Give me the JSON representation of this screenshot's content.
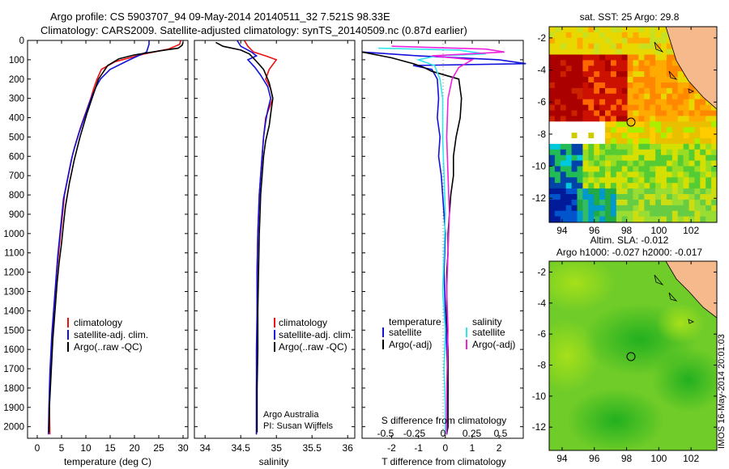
{
  "header": {
    "line1": "Argo profile: CS 5903707_94 09-May-2014 20140511_32 7.521S 98.33E",
    "line2": "Climatology: CARS2009. Satellite-adjusted climatology: synTS_20140509.nc (0.87d earlier)"
  },
  "colors": {
    "climatology": "#ee1111",
    "satellite": "#1111dd",
    "argo": "#000000",
    "sal_satellite": "#33e6ee",
    "sal_argo": "#ee22dd"
  },
  "chart_data": [
    {
      "type": "line",
      "id": "temperature",
      "xlabel": "temperature (deg C)",
      "xlim": [
        -2,
        31
      ],
      "ylim": [
        2060,
        0
      ],
      "xticks": [
        0,
        5,
        10,
        15,
        20,
        25,
        30
      ],
      "yticks": [
        0,
        100,
        200,
        300,
        400,
        500,
        600,
        700,
        800,
        900,
        1000,
        1100,
        1200,
        1300,
        1400,
        1500,
        1600,
        1700,
        1800,
        1900,
        2000
      ],
      "legend": [
        "climatology",
        "satellite-adj. clim.",
        "Argo(..raw -QC)"
      ],
      "series": [
        {
          "name": "climatology",
          "color_key": "climatology",
          "x": [
            29.5,
            29.3,
            27,
            22,
            16,
            13.2,
            12.3,
            11.6,
            11,
            10.3,
            9.6,
            8.9,
            8.3,
            7.7,
            7.2,
            6.8,
            6.4,
            6,
            5.6,
            5.2,
            4.8,
            4.4,
            4,
            3.7,
            3.4,
            3.2,
            2.9,
            2.7,
            2.5,
            2.6
          ],
          "y": [
            0,
            20,
            45,
            70,
            110,
            150,
            200,
            250,
            300,
            350,
            400,
            450,
            500,
            550,
            600,
            650,
            700,
            750,
            800,
            900,
            1000,
            1100,
            1200,
            1300,
            1400,
            1500,
            1600,
            1700,
            1900,
            2040
          ]
        },
        {
          "name": "satellite-adj. clim.",
          "color_key": "satellite",
          "x": [
            23,
            23,
            22.5,
            19,
            15,
            13,
            12.1,
            11.4,
            10.8,
            10.1,
            9.4,
            8.7,
            8.1,
            7.5,
            7,
            6.6,
            6.2,
            5.8,
            5.4,
            5,
            4.6,
            4.2,
            3.9,
            3.6,
            3.3,
            3,
            2.8,
            2.6,
            2.4,
            2.3
          ],
          "y": [
            0,
            20,
            60,
            100,
            150,
            200,
            240,
            280,
            320,
            370,
            420,
            470,
            520,
            570,
            620,
            670,
            720,
            770,
            820,
            920,
            1020,
            1120,
            1220,
            1320,
            1420,
            1520,
            1620,
            1720,
            1900,
            2040
          ]
        },
        {
          "name": "Argo(..raw -QC)",
          "color_key": "argo",
          "x": [
            30,
            29.8,
            29,
            25,
            20,
            16.8,
            14.5,
            12.6,
            11.8,
            11,
            10.2,
            9.5,
            8.8,
            8.2,
            7.6,
            7.1,
            6.6,
            6.2,
            5.8,
            5.4,
            5,
            4.5,
            4.1,
            3.8,
            3.5,
            3.2,
            3,
            2.8,
            2.5,
            2.4
          ],
          "y": [
            10,
            25,
            40,
            55,
            75,
            95,
            130,
            200,
            260,
            320,
            380,
            440,
            500,
            560,
            620,
            680,
            740,
            800,
            860,
            950,
            1050,
            1150,
            1250,
            1350,
            1450,
            1550,
            1650,
            1750,
            1900,
            2030
          ]
        }
      ]
    },
    {
      "type": "line",
      "id": "salinity",
      "xlabel": "salinity",
      "xlim": [
        33.85,
        36.1
      ],
      "ylim": [
        2060,
        0
      ],
      "xticks": [
        34,
        34.5,
        35,
        35.5,
        36
      ],
      "legend": [
        "climatology",
        "satellite-adj. clim.",
        "Argo(..raw -QC)"
      ],
      "annotations": [
        "Argo Australia",
        "PI: Susan Wijffels"
      ],
      "series": [
        {
          "name": "climatology",
          "color_key": "climatology",
          "x": [
            34.55,
            34.6,
            34.68,
            34.85,
            35,
            34.9,
            34.85,
            34.92,
            34.95,
            34.9,
            34.85,
            34.82,
            34.8,
            34.78,
            34.76,
            34.75,
            34.74,
            34.73,
            34.73,
            34.73,
            34.72,
            34.72
          ],
          "y": [
            0,
            30,
            60,
            80,
            100,
            150,
            200,
            250,
            300,
            350,
            400,
            500,
            600,
            700,
            800,
            900,
            1000,
            1200,
            1400,
            1600,
            1800,
            2040
          ]
        },
        {
          "name": "satellite-adj. clim.",
          "color_key": "satellite",
          "x": [
            34.45,
            34.5,
            34.65,
            34.72,
            34.6,
            34.7,
            34.78,
            34.88,
            34.92,
            34.88,
            34.85,
            34.82,
            34.8,
            34.78,
            34.76,
            34.75,
            34.74,
            34.73,
            34.73,
            34.72,
            34.72,
            34.72
          ],
          "y": [
            0,
            30,
            60,
            80,
            100,
            140,
            180,
            240,
            300,
            360,
            420,
            500,
            600,
            700,
            800,
            900,
            1000,
            1200,
            1400,
            1600,
            1800,
            2040
          ]
        },
        {
          "name": "Argo(..raw -QC)",
          "color_key": "argo",
          "x": [
            34.15,
            34.2,
            34.25,
            34.5,
            34.62,
            34.7,
            34.82,
            34.9,
            34.95,
            34.92,
            34.9,
            34.85,
            34.82,
            34.8,
            34.78,
            34.77,
            34.76,
            34.75,
            34.74,
            34.74,
            34.73,
            34.73
          ],
          "y": [
            10,
            20,
            30,
            50,
            70,
            100,
            150,
            220,
            300,
            380,
            440,
            520,
            600,
            700,
            800,
            900,
            1000,
            1200,
            1400,
            1600,
            1800,
            2030
          ]
        }
      ]
    },
    {
      "type": "line",
      "id": "difference",
      "xlabel": "T difference from climatology",
      "xlabel2": "S difference from climatology",
      "xlim": [
        -3.1,
        2.9
      ],
      "ylim": [
        2060,
        0
      ],
      "xticks": [
        -2,
        -1,
        0,
        1,
        2
      ],
      "xticks_top": [
        -0.5,
        -0.25,
        0,
        0.25,
        0.5
      ],
      "xticks_top_labels": [
        "-0.5",
        "-0.25",
        "0",
        "0.25",
        "0.5"
      ],
      "legend_left_title": "temperature",
      "legend_right_title": "salinity",
      "legend_left": [
        "satellite",
        "Argo(-adj)"
      ],
      "legend_right": [
        "satellite",
        "Argo(-adj)"
      ],
      "series": [
        {
          "name": "satellite",
          "group": "temperature",
          "color_key": "satellite",
          "x": [
            -3.1,
            -1,
            2,
            3,
            -1.2,
            -0.5,
            -0.3,
            -0.25,
            -0.3,
            -0.2,
            -0.25,
            -0.15,
            -0.1,
            -0.05,
            0,
            -0.05,
            0,
            0.05,
            0.1,
            0.05,
            0.05
          ],
          "y": [
            60,
            80,
            100,
            120,
            130,
            150,
            200,
            300,
            400,
            500,
            600,
            700,
            800,
            900,
            1000,
            1200,
            1400,
            1600,
            1800,
            2000,
            2040
          ]
        },
        {
          "name": "Argo(-adj)",
          "group": "temperature",
          "color_key": "argo",
          "x": [
            -3.1,
            -2,
            -1.2,
            -0.8,
            -0.5,
            0.5,
            0.6,
            0.55,
            0.4,
            0.3,
            0.3,
            0.2,
            0.15,
            0.1,
            0.1,
            0.05,
            0.05,
            0.1,
            0.1,
            0.1,
            0.05
          ],
          "y": [
            60,
            90,
            120,
            140,
            160,
            200,
            300,
            400,
            500,
            600,
            700,
            800,
            900,
            1000,
            1100,
            1200,
            1400,
            1600,
            1800,
            2000,
            2040
          ]
        },
        {
          "name": "satellite",
          "group": "salinity",
          "color_key": "sal_satellite",
          "x": [
            -2.5,
            0.5,
            1.5,
            -0.3,
            -1,
            -0.4,
            -0.2,
            -0.1,
            -0.1,
            -0.05,
            0,
            -0.05,
            -0.1,
            0,
            -0.05,
            0,
            0,
            0
          ],
          "y": [
            40,
            50,
            70,
            80,
            100,
            130,
            200,
            300,
            500,
            700,
            900,
            1100,
            1300,
            1500,
            1700,
            1900,
            2000,
            2040
          ]
        },
        {
          "name": "Argo(-adj)",
          "group": "salinity",
          "color_key": "sal_argo",
          "x": [
            -2,
            1.5,
            2.2,
            -0.5,
            1,
            0.5,
            0.25,
            0.1,
            0.05,
            0.1,
            0.15,
            0.1,
            0.05,
            0.1,
            0.05,
            0.05
          ],
          "y": [
            30,
            45,
            60,
            80,
            100,
            140,
            200,
            300,
            500,
            700,
            900,
            1100,
            1300,
            1500,
            1800,
            2040
          ]
        }
      ]
    }
  ],
  "maps": [
    {
      "id": "sst-map",
      "title": "sat. SST: 25 Argo: 29.8",
      "xticks": [
        94,
        96,
        98,
        100,
        102
      ],
      "yticks": [
        -2,
        -4,
        -6,
        -8,
        -10,
        -12
      ],
      "xlim": [
        93.2,
        103.6
      ],
      "ylim": [
        -13.5,
        -1.3
      ]
    },
    {
      "id": "sla-map",
      "title": "Altim. SLA: -0.012",
      "subtitle": "Argo h1000: -0.027 h2000: -0.017",
      "xticks": [
        94,
        96,
        98,
        100,
        102
      ],
      "yticks": [
        -2,
        -4,
        -6,
        -8,
        -10,
        -12
      ],
      "xlim": [
        93.2,
        103.6
      ],
      "ylim": [
        -13.5,
        -1.3
      ]
    }
  ],
  "footer": {
    "stamp": "IMOS 16-May-2014 20:01:03"
  }
}
